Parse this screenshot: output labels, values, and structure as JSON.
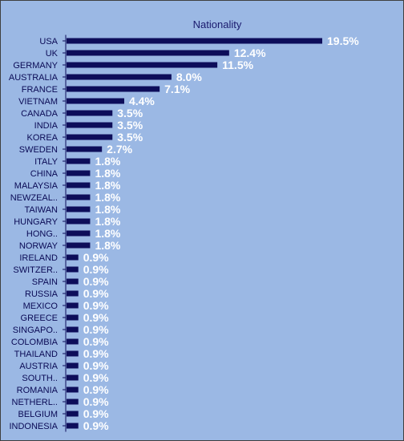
{
  "chart_data": {
    "type": "bar",
    "orientation": "horizontal",
    "title": "Nationality",
    "xlabel": "",
    "ylabel": "",
    "value_suffix": "%",
    "xlim": [
      0,
      19.5
    ],
    "grid": false,
    "colors": {
      "background": "#9bb8e4",
      "bar": "#0d0d5a",
      "label": "#ffffff",
      "category": "#0a0a55"
    },
    "categories": [
      "USA",
      "UK",
      "GERMANY",
      "AUSTRALIA",
      "FRANCE",
      "VIETNAM",
      "CANADA",
      "INDIA",
      "KOREA",
      "SWEDEN",
      "ITALY",
      "CHINA",
      "MALAYSIA",
      "NEWZEAL..",
      "TAIWAN",
      "HUNGARY",
      "HONG..",
      "NORWAY",
      "IRELAND",
      "SWITZER..",
      "SPAIN",
      "RUSSIA",
      "MEXICO",
      "GREECE",
      "SINGAPO..",
      "COLOMBIA",
      "THAILAND",
      "AUSTRIA",
      "SOUTH..",
      "ROMANIA",
      "NETHERL..",
      "BELGIUM",
      "INDONESIA"
    ],
    "values": [
      19.5,
      12.4,
      11.5,
      8.0,
      7.1,
      4.4,
      3.5,
      3.5,
      3.5,
      2.7,
      1.8,
      1.8,
      1.8,
      1.8,
      1.8,
      1.8,
      1.8,
      1.8,
      0.9,
      0.9,
      0.9,
      0.9,
      0.9,
      0.9,
      0.9,
      0.9,
      0.9,
      0.9,
      0.9,
      0.9,
      0.9,
      0.9,
      0.9
    ],
    "value_labels": [
      "19.5%",
      "12.4%",
      "11.5%",
      "8.0%",
      "7.1%",
      "4.4%",
      "3.5%",
      "3.5%",
      "3.5%",
      "2.7%",
      "1.8%",
      "1.8%",
      "1.8%",
      "1.8%",
      "1.8%",
      "1.8%",
      "1.8%",
      "1.8%",
      "0.9%",
      "0.9%",
      "0.9%",
      "0.9%",
      "0.9%",
      "0.9%",
      "0.9%",
      "0.9%",
      "0.9%",
      "0.9%",
      "0.9%",
      "0.9%",
      "0.9%",
      "0.9%",
      "0.9%"
    ]
  }
}
